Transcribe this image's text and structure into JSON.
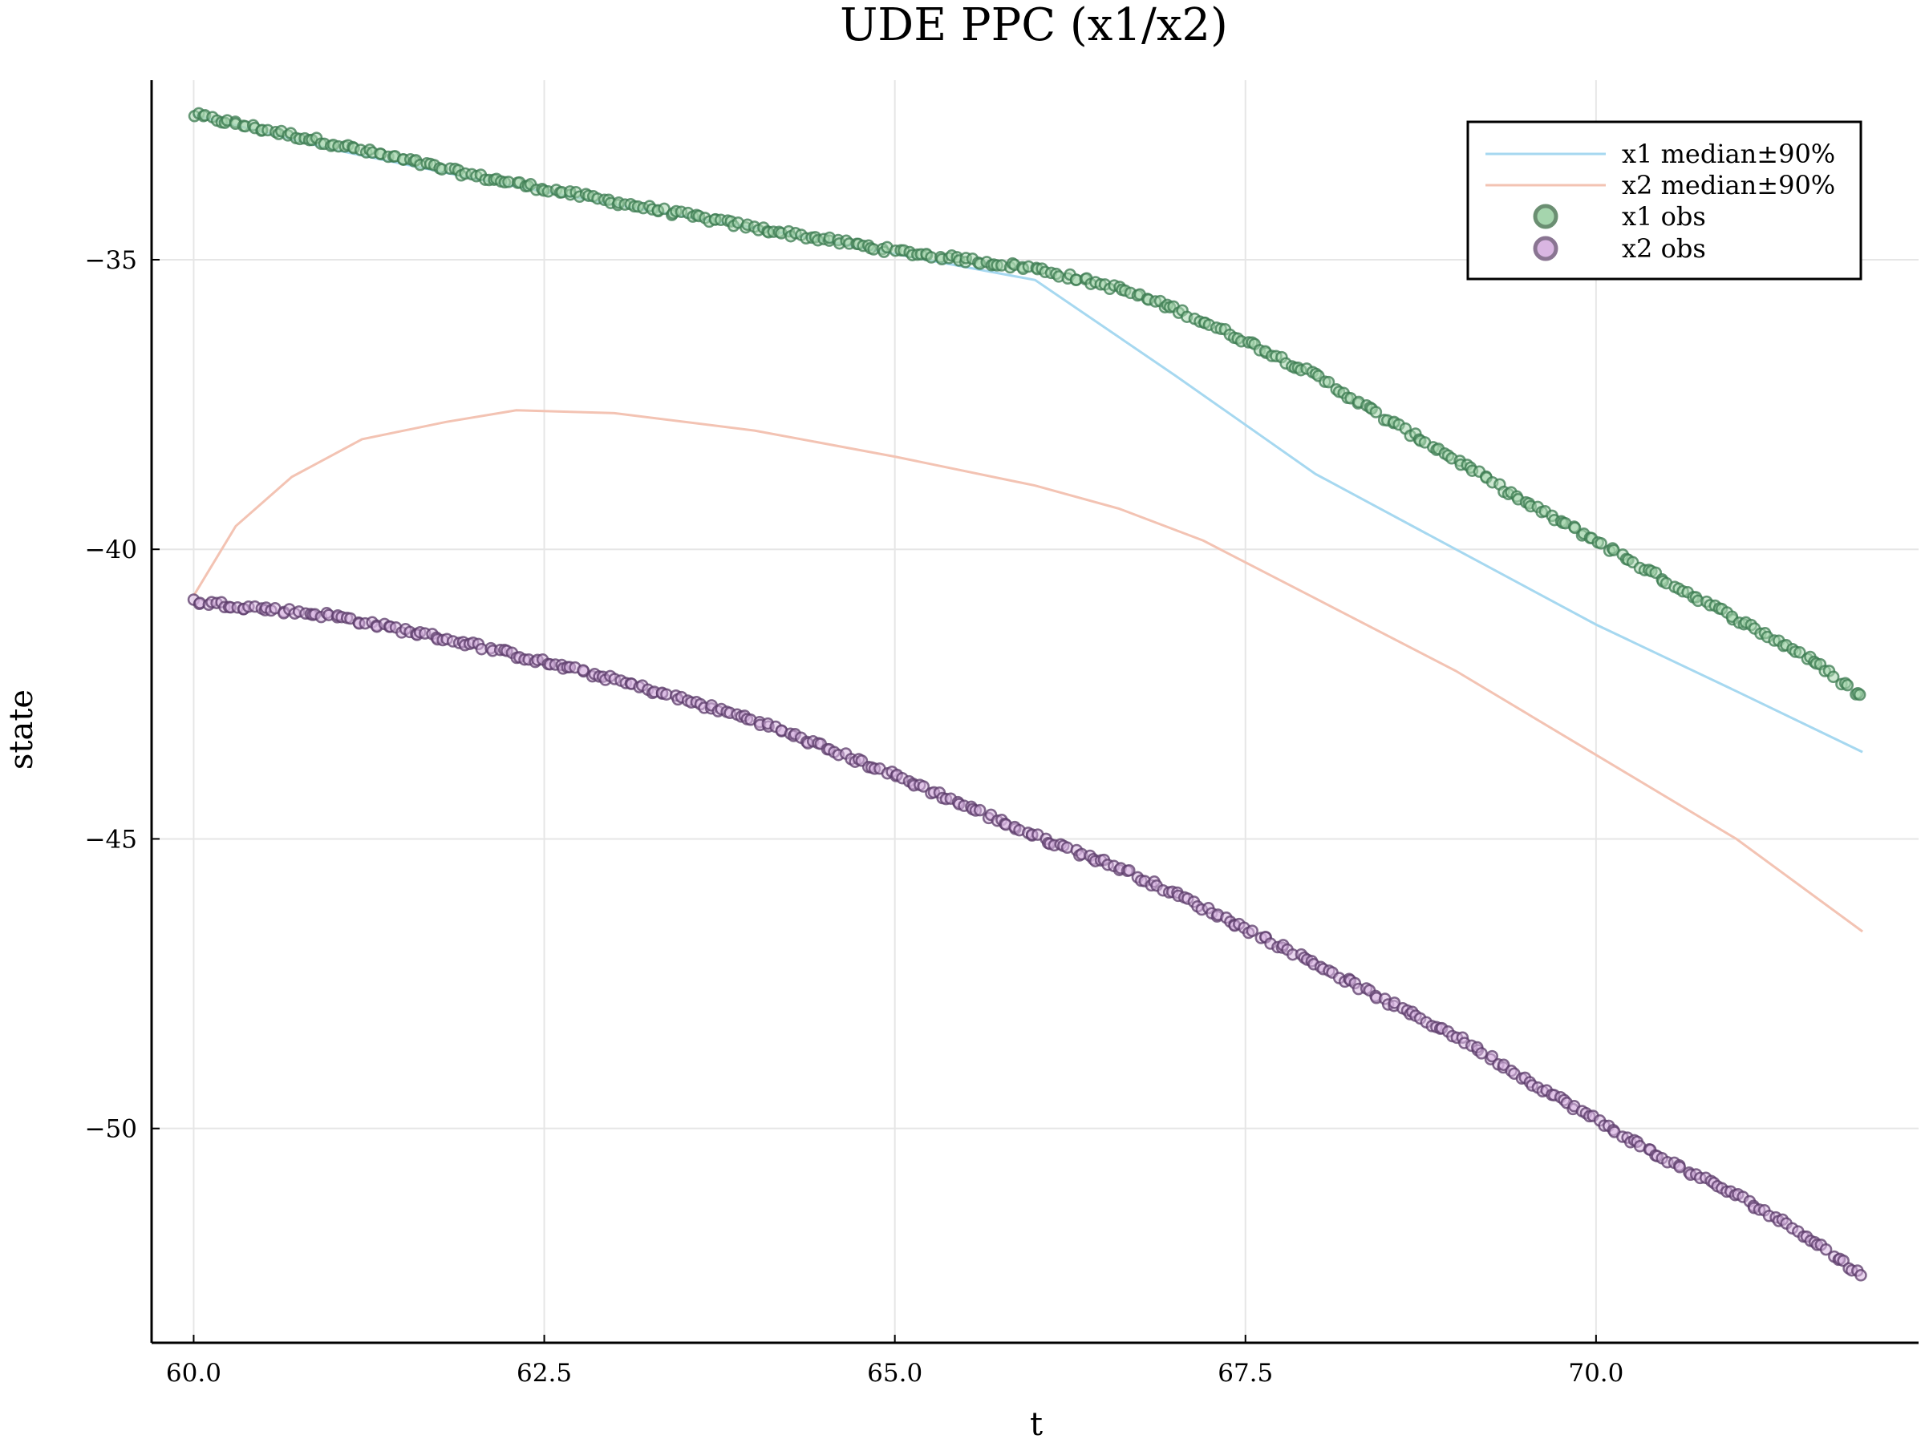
{
  "chart_data": {
    "type": "scatter",
    "title": "UDE PPC (x1/x2)",
    "xlabel": "t",
    "ylabel": "state",
    "xlim": [
      59.7,
      72.3
    ],
    "ylim": [
      -53.7,
      -31.9
    ],
    "xticks": [
      60.0,
      62.5,
      65.0,
      67.5,
      70.0
    ],
    "xtick_labels": [
      "60.0",
      "62.5",
      "65.0",
      "67.5",
      "70.0"
    ],
    "yticks": [
      -35,
      -40,
      -45,
      -50
    ],
    "ytick_labels": [
      "−35",
      "−40",
      "−45",
      "−50"
    ],
    "grid": true,
    "legend_position": "top-right",
    "series": [
      {
        "name": "x1 median±90%",
        "kind": "line",
        "color": "#a6d8f0",
        "points": [
          [
            60.0,
            -32.5
          ],
          [
            61.0,
            -33.1
          ],
          [
            62.0,
            -33.6
          ],
          [
            63.0,
            -34.05
          ],
          [
            64.0,
            -34.45
          ],
          [
            65.0,
            -34.9
          ],
          [
            66.0,
            -35.35
          ],
          [
            67.0,
            -37.0
          ],
          [
            68.0,
            -38.7
          ],
          [
            69.0,
            -40.0
          ],
          [
            70.0,
            -41.3
          ],
          [
            71.0,
            -42.45
          ],
          [
            71.9,
            -43.5
          ]
        ]
      },
      {
        "name": "x2 median±90%",
        "kind": "line",
        "color": "#f3c3b3",
        "points": [
          [
            60.0,
            -40.8
          ],
          [
            60.3,
            -39.6
          ],
          [
            60.7,
            -38.75
          ],
          [
            61.2,
            -38.1
          ],
          [
            61.8,
            -37.8
          ],
          [
            62.3,
            -37.6
          ],
          [
            63.0,
            -37.65
          ],
          [
            64.0,
            -37.95
          ],
          [
            65.0,
            -38.4
          ],
          [
            66.0,
            -38.9
          ],
          [
            66.6,
            -39.3
          ],
          [
            67.2,
            -39.85
          ],
          [
            68.0,
            -40.85
          ],
          [
            69.0,
            -42.1
          ],
          [
            70.0,
            -43.55
          ],
          [
            71.0,
            -45.0
          ],
          [
            71.9,
            -46.6
          ]
        ]
      },
      {
        "name": "x1 obs",
        "kind": "scatter",
        "color": "#3a7a4f",
        "fill": "#a5d5ad",
        "x_start": 60.0,
        "x_end": 71.9,
        "curve": [
          [
            60.0,
            -32.5
          ],
          [
            61.0,
            -33.0
          ],
          [
            62.0,
            -33.55
          ],
          [
            63.0,
            -34.0
          ],
          [
            64.0,
            -34.45
          ],
          [
            65.0,
            -34.85
          ],
          [
            66.0,
            -35.15
          ],
          [
            66.6,
            -35.5
          ],
          [
            67.0,
            -35.85
          ],
          [
            67.5,
            -36.4
          ],
          [
            68.0,
            -37.0
          ],
          [
            68.5,
            -37.75
          ],
          [
            69.0,
            -38.45
          ],
          [
            69.5,
            -39.2
          ],
          [
            70.0,
            -39.85
          ],
          [
            70.5,
            -40.55
          ],
          [
            71.0,
            -41.2
          ],
          [
            71.5,
            -41.85
          ],
          [
            71.9,
            -42.55
          ]
        ]
      },
      {
        "name": "x2 obs",
        "kind": "scatter",
        "color": "#5a3a68",
        "fill": "#d9b6e2",
        "x_start": 60.0,
        "x_end": 71.9,
        "curve": [
          [
            60.0,
            -40.9
          ],
          [
            61.0,
            -41.15
          ],
          [
            62.0,
            -41.65
          ],
          [
            63.0,
            -42.25
          ],
          [
            64.0,
            -42.95
          ],
          [
            65.0,
            -43.9
          ],
          [
            66.0,
            -44.95
          ],
          [
            66.6,
            -45.5
          ],
          [
            67.0,
            -45.95
          ],
          [
            67.5,
            -46.55
          ],
          [
            68.0,
            -47.15
          ],
          [
            68.5,
            -47.8
          ],
          [
            69.0,
            -48.4
          ],
          [
            69.5,
            -49.15
          ],
          [
            70.0,
            -49.85
          ],
          [
            70.5,
            -50.55
          ],
          [
            71.0,
            -51.15
          ],
          [
            71.5,
            -51.85
          ],
          [
            71.9,
            -52.55
          ]
        ]
      }
    ]
  }
}
